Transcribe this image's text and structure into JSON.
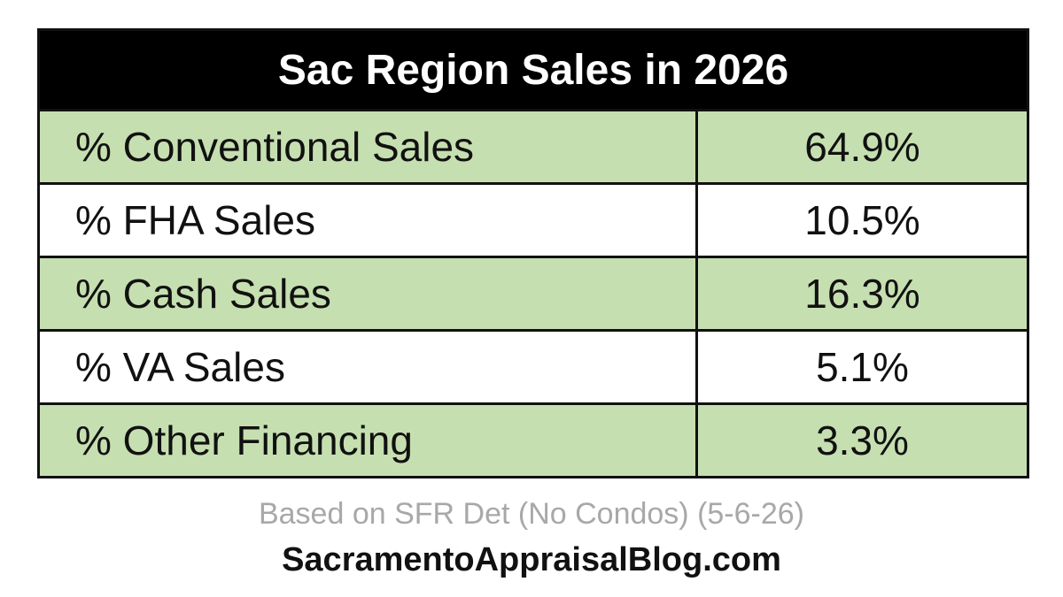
{
  "header": {
    "title": "Sac Region Sales in 2026"
  },
  "table": {
    "rows": [
      [
        "% Conventional Sales",
        "64.9%"
      ],
      [
        "% FHA Sales",
        "10.5%"
      ],
      [
        "% Cash Sales",
        "16.3%"
      ],
      [
        "% VA Sales",
        "5.1%"
      ],
      [
        "% Other Financing",
        "3.3%"
      ]
    ]
  },
  "footer": {
    "note": "Based on SFR Det (No Condos) (5-6-26)",
    "source": "SacramentoAppraisalBlog.com"
  }
}
